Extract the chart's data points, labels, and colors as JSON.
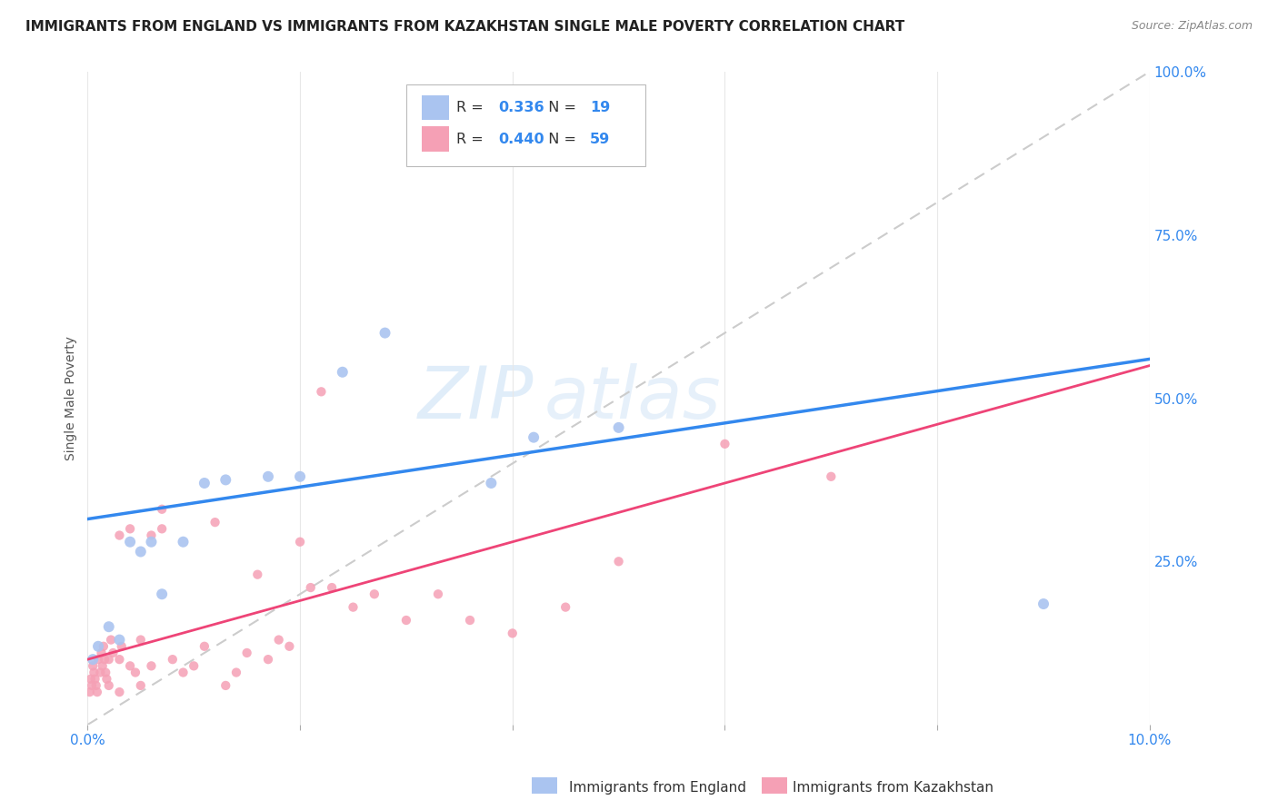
{
  "title": "IMMIGRANTS FROM ENGLAND VS IMMIGRANTS FROM KAZAKHSTAN SINGLE MALE POVERTY CORRELATION CHART",
  "source": "Source: ZipAtlas.com",
  "ylabel": "Single Male Poverty",
  "legend_england_R": "0.336",
  "legend_england_N": "19",
  "legend_kazakhstan_R": "0.440",
  "legend_kazakhstan_N": "59",
  "legend_label1": "Immigrants from England",
  "legend_label2": "Immigrants from Kazakhstan",
  "england_color": "#aac4f0",
  "kazakhstan_color": "#f5a0b5",
  "trendline_england_color": "#3388ee",
  "trendline_kazakhstan_color": "#ee4477",
  "diagonal_color": "#cccccc",
  "right_axis_color": "#3388ee",
  "xlim": [
    0.0,
    0.1
  ],
  "ylim": [
    0.0,
    1.0
  ],
  "right_yticks": [
    0.0,
    0.25,
    0.5,
    0.75,
    1.0
  ],
  "right_yticklabels": [
    "",
    "25.0%",
    "50.0%",
    "75.0%",
    "100.0%"
  ],
  "england_x": [
    0.0005,
    0.001,
    0.002,
    0.003,
    0.004,
    0.005,
    0.006,
    0.007,
    0.009,
    0.011,
    0.013,
    0.017,
    0.02,
    0.024,
    0.028,
    0.038,
    0.042,
    0.05,
    0.09
  ],
  "england_y": [
    0.1,
    0.12,
    0.15,
    0.13,
    0.28,
    0.265,
    0.28,
    0.2,
    0.28,
    0.37,
    0.375,
    0.38,
    0.38,
    0.54,
    0.6,
    0.37,
    0.44,
    0.455,
    0.185
  ],
  "kazakhstan_x": [
    0.0002,
    0.0003,
    0.0004,
    0.0005,
    0.0006,
    0.0007,
    0.0008,
    0.0009,
    0.001,
    0.0012,
    0.0013,
    0.0014,
    0.0015,
    0.0016,
    0.0017,
    0.0018,
    0.002,
    0.002,
    0.0022,
    0.0024,
    0.003,
    0.003,
    0.003,
    0.0032,
    0.004,
    0.004,
    0.0045,
    0.005,
    0.005,
    0.006,
    0.006,
    0.007,
    0.007,
    0.008,
    0.009,
    0.01,
    0.011,
    0.012,
    0.013,
    0.014,
    0.015,
    0.016,
    0.017,
    0.018,
    0.019,
    0.02,
    0.021,
    0.022,
    0.023,
    0.025,
    0.027,
    0.03,
    0.033,
    0.036,
    0.04,
    0.045,
    0.05,
    0.06,
    0.07
  ],
  "kazakhstan_y": [
    0.05,
    0.07,
    0.06,
    0.09,
    0.08,
    0.07,
    0.06,
    0.05,
    0.1,
    0.08,
    0.11,
    0.09,
    0.12,
    0.1,
    0.08,
    0.07,
    0.06,
    0.1,
    0.13,
    0.11,
    0.05,
    0.1,
    0.29,
    0.12,
    0.09,
    0.3,
    0.08,
    0.06,
    0.13,
    0.09,
    0.29,
    0.3,
    0.33,
    0.1,
    0.08,
    0.09,
    0.12,
    0.31,
    0.06,
    0.08,
    0.11,
    0.23,
    0.1,
    0.13,
    0.12,
    0.28,
    0.21,
    0.51,
    0.21,
    0.18,
    0.2,
    0.16,
    0.2,
    0.16,
    0.14,
    0.18,
    0.25,
    0.43,
    0.38
  ],
  "bg_color": "#ffffff",
  "watermark_text": "ZIP",
  "watermark_text2": "atlas",
  "xtick_positions": [
    0.0,
    0.02,
    0.04,
    0.06,
    0.08,
    0.1
  ],
  "xtick_labels": [
    "0.0%",
    "",
    "",
    "",
    "",
    "10.0%"
  ],
  "grid_color": "#e8e8e8",
  "title_fontsize": 11,
  "source_fontsize": 9,
  "axis_label_fontsize": 10,
  "tick_fontsize": 11
}
